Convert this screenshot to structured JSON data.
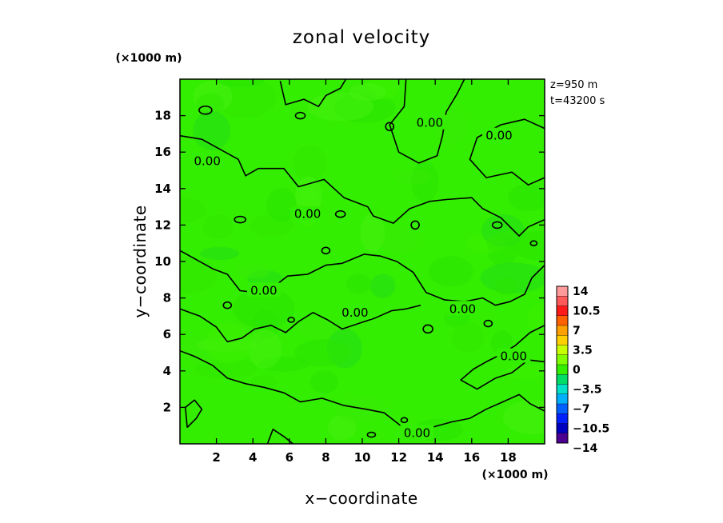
{
  "chart_data": {
    "type": "heatmap",
    "title": "zonal velocity",
    "xlabel": "x−coordinate",
    "ylabel": "y−coordinate",
    "x_unit": "(×1000 m)",
    "y_unit": "(×1000 m)",
    "xlim": [
      0,
      20
    ],
    "ylim": [
      0,
      20
    ],
    "x_ticks": [
      2,
      4,
      6,
      8,
      10,
      12,
      14,
      16,
      18
    ],
    "y_ticks": [
      2,
      4,
      6,
      8,
      10,
      12,
      14,
      16,
      18
    ],
    "x_tick_labels": [
      "2",
      "4",
      "6",
      "8",
      "10",
      "12",
      "14",
      "16",
      "18"
    ],
    "y_tick_labels": [
      "2",
      "4",
      "6",
      "8",
      "10",
      "12",
      "14",
      "16",
      "18"
    ],
    "info": [
      "z=950 m",
      "t=43200 s"
    ],
    "contour_level": 0,
    "contour_label": "0.00",
    "contour_label_positions": [
      {
        "x": 1.5,
        "y": 15.5
      },
      {
        "x": 13.7,
        "y": 17.6
      },
      {
        "x": 17.5,
        "y": 16.9
      },
      {
        "x": 7.0,
        "y": 12.6
      },
      {
        "x": 4.6,
        "y": 8.4
      },
      {
        "x": 9.6,
        "y": 7.2
      },
      {
        "x": 15.5,
        "y": 7.4
      },
      {
        "x": 18.3,
        "y": 4.8
      },
      {
        "x": 13.0,
        "y": 0.6
      }
    ],
    "field_range": [
      -3.5,
      3.5
    ],
    "colorbar": {
      "levels": [
        -14,
        -10.5,
        -7,
        -3.5,
        0,
        3.5,
        7,
        10.5,
        14
      ],
      "labels": [
        "14",
        "10.5",
        "7",
        "3.5",
        "0",
        "−3.5",
        "−7",
        "−10.5",
        "−14"
      ],
      "colors": [
        "#ff9a9a",
        "#ff5a5a",
        "#ff1a1a",
        "#ff6000",
        "#ffa000",
        "#ffd000",
        "#c8ff00",
        "#80ff00",
        "#33ee00",
        "#00dd66",
        "#00e0c8",
        "#00b0ff",
        "#0060ff",
        "#0020ff",
        "#0000c0",
        "#4b0090"
      ]
    }
  }
}
